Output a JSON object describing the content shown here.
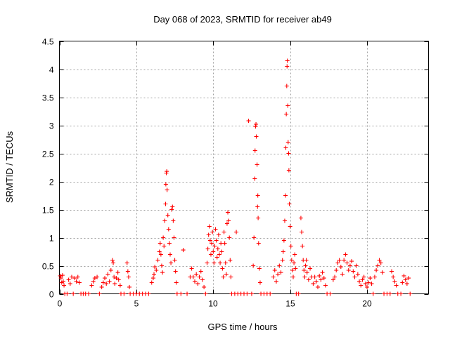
{
  "chart_data": {
    "type": "scatter",
    "title": "Day 068 of 2023, SRMTID for receiver ab49",
    "xlabel": "GPS time / hours",
    "ylabel": "SRMTID / TECUs",
    "xlim": [
      0,
      24
    ],
    "ylim": [
      0,
      4.5
    ],
    "xticks": [
      0,
      5,
      10,
      15,
      20
    ],
    "yticks": [
      0,
      0.5,
      1,
      1.5,
      2,
      2.5,
      3,
      3.5,
      4,
      4.5
    ],
    "grid": true,
    "legend": "none",
    "marker": "+",
    "color": "#ff0000",
    "series": [
      {
        "name": "SRMTID",
        "points": [
          [
            0.05,
            0.32
          ],
          [
            0.1,
            0.28
          ],
          [
            0.15,
            0.2
          ],
          [
            0.2,
            0.33
          ],
          [
            0.25,
            0.22
          ],
          [
            0.3,
            0.15
          ],
          [
            0.35,
            0.0
          ],
          [
            0.5,
            0.0
          ],
          [
            0.6,
            0.25
          ],
          [
            0.7,
            0.18
          ],
          [
            0.8,
            0.3
          ],
          [
            0.9,
            0.0
          ],
          [
            1.0,
            0.28
          ],
          [
            1.1,
            0.22
          ],
          [
            1.2,
            0.3
          ],
          [
            1.3,
            0.2
          ],
          [
            1.4,
            0.0
          ],
          [
            1.55,
            0.0
          ],
          [
            1.7,
            0.0
          ],
          [
            1.9,
            0.0
          ],
          [
            2.1,
            0.15
          ],
          [
            2.2,
            0.22
          ],
          [
            2.3,
            0.28
          ],
          [
            2.45,
            0.3
          ],
          [
            2.6,
            0.0
          ],
          [
            2.75,
            0.12
          ],
          [
            2.85,
            0.2
          ],
          [
            2.95,
            0.28
          ],
          [
            3.05,
            0.18
          ],
          [
            3.15,
            0.35
          ],
          [
            3.25,
            0.22
          ],
          [
            3.35,
            0.42
          ],
          [
            3.45,
            0.6
          ],
          [
            3.5,
            0.55
          ],
          [
            3.55,
            0.3
          ],
          [
            3.6,
            0.18
          ],
          [
            3.7,
            0.28
          ],
          [
            3.8,
            0.38
          ],
          [
            3.85,
            0.25
          ],
          [
            3.95,
            0.15
          ],
          [
            4.0,
            0.0
          ],
          [
            4.2,
            0.0
          ],
          [
            4.4,
            0.55
          ],
          [
            4.45,
            0.4
          ],
          [
            4.5,
            0.3
          ],
          [
            4.55,
            0.12
          ],
          [
            4.6,
            0.0
          ],
          [
            4.8,
            0.0
          ],
          [
            5.0,
            0.0
          ],
          [
            5.2,
            0.0
          ],
          [
            5.4,
            0.0
          ],
          [
            5.6,
            0.0
          ],
          [
            5.8,
            0.0
          ],
          [
            6.0,
            0.2
          ],
          [
            6.1,
            0.28
          ],
          [
            6.15,
            0.35
          ],
          [
            6.2,
            0.48
          ],
          [
            6.3,
            0.42
          ],
          [
            6.4,
            0.6
          ],
          [
            6.5,
            0.75
          ],
          [
            6.55,
            0.9
          ],
          [
            6.6,
            0.7
          ],
          [
            6.65,
            0.5
          ],
          [
            6.7,
            0.38
          ],
          [
            6.75,
            1.0
          ],
          [
            6.8,
            0.85
          ],
          [
            6.85,
            1.3
          ],
          [
            6.9,
            1.6
          ],
          [
            6.92,
            1.95
          ],
          [
            6.95,
            2.15
          ],
          [
            6.98,
            2.18
          ],
          [
            7.0,
            1.85
          ],
          [
            7.05,
            1.4
          ],
          [
            7.1,
            1.15
          ],
          [
            7.15,
            0.9
          ],
          [
            7.2,
            0.7
          ],
          [
            7.25,
            0.55
          ],
          [
            7.3,
            1.5
          ],
          [
            7.35,
            1.55
          ],
          [
            7.4,
            1.3
          ],
          [
            7.45,
            1.0
          ],
          [
            7.5,
            0.6
          ],
          [
            7.55,
            0.4
          ],
          [
            7.6,
            0.2
          ],
          [
            7.65,
            0.0
          ],
          [
            7.9,
            0.0
          ],
          [
            8.05,
            0.78
          ],
          [
            8.3,
            0.0
          ],
          [
            8.5,
            0.3
          ],
          [
            8.6,
            0.45
          ],
          [
            8.7,
            0.3
          ],
          [
            8.8,
            0.22
          ],
          [
            8.9,
            0.35
          ],
          [
            9.0,
            0.18
          ],
          [
            9.1,
            0.3
          ],
          [
            9.2,
            0.4
          ],
          [
            9.3,
            0.25
          ],
          [
            9.4,
            0.12
          ],
          [
            9.5,
            0.0
          ],
          [
            9.6,
            0.55
          ],
          [
            9.65,
            0.8
          ],
          [
            9.7,
            1.05
          ],
          [
            9.75,
            1.2
          ],
          [
            9.8,
            0.95
          ],
          [
            9.85,
            0.7
          ],
          [
            9.9,
            0.9
          ],
          [
            9.95,
            1.1
          ],
          [
            10.0,
            0.75
          ],
          [
            10.05,
            0.55
          ],
          [
            10.1,
            0.85
          ],
          [
            10.15,
            1.15
          ],
          [
            10.2,
            0.95
          ],
          [
            10.25,
            0.65
          ],
          [
            10.3,
            0.8
          ],
          [
            10.35,
            1.05
          ],
          [
            10.4,
            0.7
          ],
          [
            10.45,
            0.55
          ],
          [
            10.5,
            0.9
          ],
          [
            10.55,
            0.75
          ],
          [
            10.6,
            0.45
          ],
          [
            10.65,
            0.3
          ],
          [
            10.7,
            1.1
          ],
          [
            10.75,
            0.9
          ],
          [
            10.8,
            0.55
          ],
          [
            10.85,
            0.35
          ],
          [
            10.9,
            1.25
          ],
          [
            10.95,
            1.45
          ],
          [
            11.0,
            1.3
          ],
          [
            11.05,
            1.0
          ],
          [
            11.1,
            0.6
          ],
          [
            11.15,
            0.3
          ],
          [
            11.2,
            0.0
          ],
          [
            11.4,
            0.0
          ],
          [
            11.5,
            1.1
          ],
          [
            11.6,
            0.0
          ],
          [
            11.8,
            0.0
          ],
          [
            12.0,
            0.0
          ],
          [
            12.2,
            0.0
          ],
          [
            12.3,
            3.08
          ],
          [
            12.5,
            0.0
          ],
          [
            12.6,
            0.5
          ],
          [
            12.65,
            1.0
          ],
          [
            12.7,
            2.05
          ],
          [
            12.72,
            2.55
          ],
          [
            12.75,
            2.98
          ],
          [
            12.78,
            3.02
          ],
          [
            12.8,
            2.8
          ],
          [
            12.85,
            2.3
          ],
          [
            12.88,
            1.55
          ],
          [
            12.9,
            1.75
          ],
          [
            12.92,
            1.35
          ],
          [
            12.95,
            0.9
          ],
          [
            13.0,
            0.45
          ],
          [
            13.05,
            0.2
          ],
          [
            13.1,
            0.0
          ],
          [
            13.3,
            0.0
          ],
          [
            13.5,
            0.0
          ],
          [
            13.7,
            0.0
          ],
          [
            13.9,
            0.3
          ],
          [
            14.0,
            0.42
          ],
          [
            14.1,
            0.22
          ],
          [
            14.2,
            0.35
          ],
          [
            14.3,
            0.5
          ],
          [
            14.4,
            0.38
          ],
          [
            14.5,
            0.6
          ],
          [
            14.55,
            0.75
          ],
          [
            14.6,
            0.95
          ],
          [
            14.65,
            1.3
          ],
          [
            14.7,
            1.75
          ],
          [
            14.72,
            2.6
          ],
          [
            14.75,
            3.2
          ],
          [
            14.78,
            3.7
          ],
          [
            14.8,
            4.05
          ],
          [
            14.82,
            4.15
          ],
          [
            14.85,
            3.35
          ],
          [
            14.87,
            2.7
          ],
          [
            14.9,
            2.5
          ],
          [
            14.92,
            2.2
          ],
          [
            14.95,
            1.6
          ],
          [
            15.0,
            1.2
          ],
          [
            15.05,
            0.85
          ],
          [
            15.1,
            0.6
          ],
          [
            15.15,
            0.42
          ],
          [
            15.2,
            0.3
          ],
          [
            15.25,
            0.55
          ],
          [
            15.3,
            0.7
          ],
          [
            15.35,
            0.45
          ],
          [
            15.4,
            0.0
          ],
          [
            15.55,
            0.0
          ],
          [
            15.7,
            1.35
          ],
          [
            15.75,
            1.1
          ],
          [
            15.8,
            0.85
          ],
          [
            15.85,
            0.6
          ],
          [
            15.9,
            0.42
          ],
          [
            15.95,
            0.3
          ],
          [
            16.0,
            0.5
          ],
          [
            16.05,
            0.6
          ],
          [
            16.1,
            0.38
          ],
          [
            16.2,
            0.25
          ],
          [
            16.3,
            0.45
          ],
          [
            16.4,
            0.3
          ],
          [
            16.5,
            0.18
          ],
          [
            16.6,
            0.3
          ],
          [
            16.7,
            0.22
          ],
          [
            16.8,
            0.12
          ],
          [
            16.9,
            0.32
          ],
          [
            17.0,
            0.25
          ],
          [
            17.1,
            0.38
          ],
          [
            17.2,
            0.28
          ],
          [
            17.3,
            0.15
          ],
          [
            17.4,
            0.0
          ],
          [
            17.6,
            0.0
          ],
          [
            17.8,
            0.25
          ],
          [
            17.9,
            0.3
          ],
          [
            18.0,
            0.42
          ],
          [
            18.1,
            0.55
          ],
          [
            18.2,
            0.6
          ],
          [
            18.3,
            0.48
          ],
          [
            18.4,
            0.35
          ],
          [
            18.5,
            0.6
          ],
          [
            18.6,
            0.7
          ],
          [
            18.7,
            0.55
          ],
          [
            18.8,
            0.42
          ],
          [
            18.9,
            0.5
          ],
          [
            19.0,
            0.58
          ],
          [
            19.1,
            0.4
          ],
          [
            19.2,
            0.3
          ],
          [
            19.3,
            0.5
          ],
          [
            19.4,
            0.35
          ],
          [
            19.5,
            0.22
          ],
          [
            19.6,
            0.15
          ],
          [
            19.7,
            0.25
          ],
          [
            19.8,
            0.3
          ],
          [
            19.9,
            0.18
          ],
          [
            20.0,
            0.12
          ],
          [
            20.1,
            0.2
          ],
          [
            20.2,
            0.28
          ],
          [
            20.3,
            0.18
          ],
          [
            20.4,
            0.0
          ],
          [
            20.5,
            0.3
          ],
          [
            20.6,
            0.42
          ],
          [
            20.7,
            0.5
          ],
          [
            20.8,
            0.6
          ],
          [
            20.9,
            0.55
          ],
          [
            21.0,
            0.38
          ],
          [
            21.1,
            0.0
          ],
          [
            21.3,
            0.0
          ],
          [
            21.5,
            0.0
          ],
          [
            21.6,
            0.4
          ],
          [
            21.7,
            0.3
          ],
          [
            21.8,
            0.22
          ],
          [
            21.9,
            0.15
          ],
          [
            22.0,
            0.0
          ],
          [
            22.2,
            0.0
          ],
          [
            22.3,
            0.2
          ],
          [
            22.4,
            0.32
          ],
          [
            22.5,
            0.25
          ],
          [
            22.6,
            0.18
          ],
          [
            22.7,
            0.28
          ],
          [
            22.8,
            0.0
          ]
        ]
      }
    ]
  }
}
